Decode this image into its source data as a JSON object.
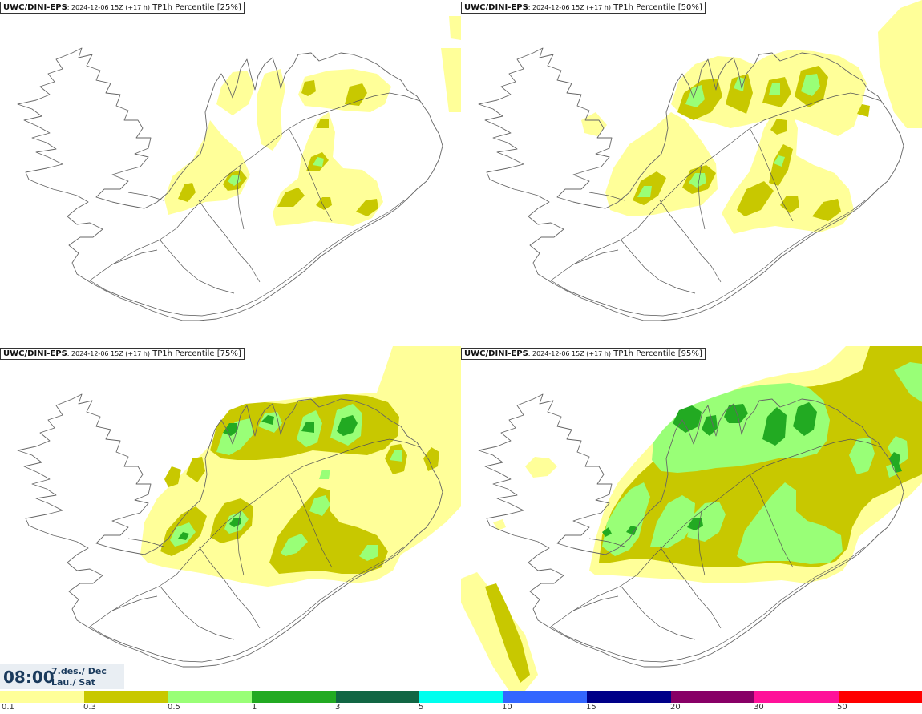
{
  "panels": [
    {
      "model": "UWC/DINI-EPS",
      "run": ": 2024-12-06 15Z (+17 h)",
      "field": "TP1h Percentile [25%]"
    },
    {
      "model": "UWC/DINI-EPS",
      "run": ": 2024-12-06 15Z (+17 h)",
      "field": "TP1h Percentile [50%]"
    },
    {
      "model": "UWC/DINI-EPS",
      "run": ": 2024-12-06 15Z (+17 h)",
      "field": "TP1h Percentile [75%]"
    },
    {
      "model": "UWC/DINI-EPS",
      "run": ": 2024-12-06 15Z (+17 h)",
      "field": "TP1h Percentile [95%]"
    }
  ],
  "time": {
    "clock": "08:00",
    "date": "7.des./ Dec",
    "day": "Lau./ Sat"
  },
  "legend": {
    "colors": [
      "#ffff99",
      "#c8c800",
      "#99ff77",
      "#22aa22",
      "#116644",
      "#00ffee",
      "#3366ff",
      "#000088",
      "#880066",
      "#ff1199",
      "#ff0000"
    ],
    "labels": [
      "0.1",
      "0.3",
      "0.5",
      "1",
      "3",
      "5",
      "10",
      "15",
      "20",
      "30",
      "50"
    ]
  }
}
